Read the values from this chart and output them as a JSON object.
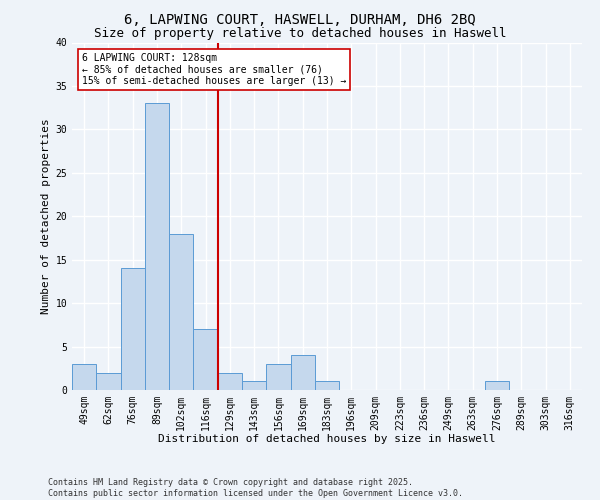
{
  "title_line1": "6, LAPWING COURT, HASWELL, DURHAM, DH6 2BQ",
  "title_line2": "Size of property relative to detached houses in Haswell",
  "xlabel": "Distribution of detached houses by size in Haswell",
  "ylabel": "Number of detached properties",
  "categories": [
    "49sqm",
    "62sqm",
    "76sqm",
    "89sqm",
    "102sqm",
    "116sqm",
    "129sqm",
    "143sqm",
    "156sqm",
    "169sqm",
    "183sqm",
    "196sqm",
    "209sqm",
    "223sqm",
    "236sqm",
    "249sqm",
    "263sqm",
    "276sqm",
    "289sqm",
    "303sqm",
    "316sqm"
  ],
  "values": [
    3,
    2,
    14,
    33,
    18,
    7,
    2,
    1,
    3,
    4,
    1,
    0,
    0,
    0,
    0,
    0,
    0,
    1,
    0,
    0,
    0
  ],
  "bar_color": "#c5d8ed",
  "bar_edge_color": "#5b9bd5",
  "background_color": "#eef3f9",
  "grid_color": "#ffffff",
  "vline_index": 6,
  "vline_color": "#cc0000",
  "annotation_line1": "6 LAPWING COURT: 128sqm",
  "annotation_line2": "← 85% of detached houses are smaller (76)",
  "annotation_line3": "15% of semi-detached houses are larger (13) →",
  "annotation_box_color": "#ffffff",
  "annotation_box_edge": "#cc0000",
  "ylim": [
    0,
    40
  ],
  "yticks": [
    0,
    5,
    10,
    15,
    20,
    25,
    30,
    35,
    40
  ],
  "footer_text": "Contains HM Land Registry data © Crown copyright and database right 2025.\nContains public sector information licensed under the Open Government Licence v3.0.",
  "title_fontsize": 10,
  "subtitle_fontsize": 9,
  "axis_label_fontsize": 8,
  "tick_fontsize": 7,
  "annotation_fontsize": 7,
  "footer_fontsize": 6
}
